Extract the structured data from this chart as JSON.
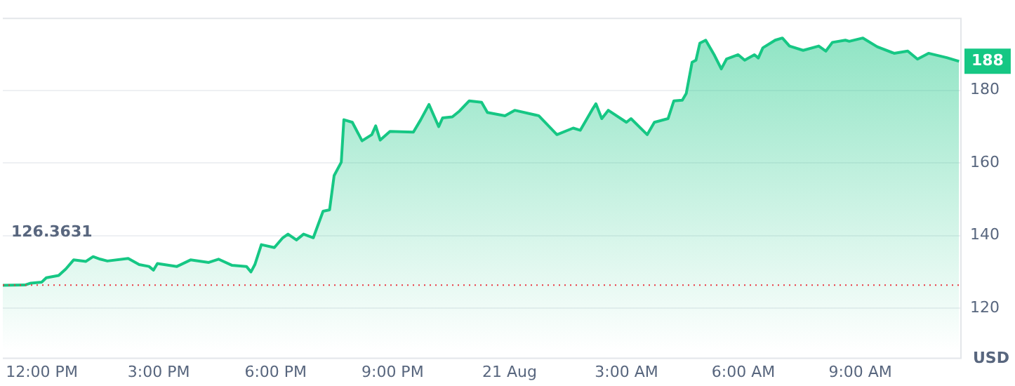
{
  "chart_data": {
    "type": "area",
    "ylabel": "USD",
    "x": [
      "--08-20T11:00",
      "--08-20T11:34",
      "--08-20T11:43",
      "--08-20T12:00",
      "--08-20T12:07",
      "--08-20T12:26",
      "--08-20T12:37",
      "--08-20T12:49",
      "--08-20T13:08",
      "--08-20T13:19",
      "--08-20T13:30",
      "--08-20T13:41",
      "--08-20T14:13",
      "--08-20T14:30",
      "--08-20T14:45",
      "--08-20T14:52",
      "--08-20T14:58",
      "--08-20T15:28",
      "--08-20T15:49",
      "--08-20T16:17",
      "--08-20T16:32",
      "--08-20T16:53",
      "--08-20T17:15",
      "--08-20T17:22",
      "--08-20T17:28",
      "--08-20T17:38",
      "--08-20T17:58",
      "--08-20T18:11",
      "--08-20T18:19",
      "--08-20T18:32",
      "--08-20T18:43",
      "--08-20T18:58",
      "--08-20T19:13",
      "--08-20T19:23",
      "--08-20T19:30",
      "--08-20T19:41",
      "--08-20T19:45",
      "--08-20T19:58",
      "--08-20T20:13",
      "--08-20T20:28",
      "--08-20T20:34",
      "--08-20T20:41",
      "--08-20T20:56",
      "--08-20T21:32",
      "--08-20T21:43",
      "--08-20T21:56",
      "--08-20T22:11",
      "--08-20T22:17",
      "--08-20T22:32",
      "--08-20T22:43",
      "--08-20T22:58",
      "--08-20T23:17",
      "--08-20T23:26",
      "--08-20T23:53",
      "--08-21T00:08",
      "--08-21T00:45",
      "--08-21T00:58",
      "--08-21T01:13",
      "--08-21T01:38",
      "--08-21T01:49",
      "--08-21T02:07",
      "--08-21T02:13",
      "--08-21T02:22",
      "--08-21T02:32",
      "--08-21T03:00",
      "--08-21T03:07",
      "--08-21T03:32",
      "--08-21T03:43",
      "--08-21T04:04",
      "--08-21T04:13",
      "--08-21T04:26",
      "--08-21T04:32",
      "--08-21T04:41",
      "--08-21T04:47",
      "--08-21T04:53",
      "--08-21T05:02",
      "--08-21T05:15",
      "--08-21T05:26",
      "--08-21T05:34",
      "--08-21T05:52",
      "--08-21T06:02",
      "--08-21T06:17",
      "--08-21T06:23",
      "--08-21T06:30",
      "--08-21T06:49",
      "--08-21T07:00",
      "--08-21T07:11",
      "--08-21T07:32",
      "--08-21T07:56",
      "--08-21T08:07",
      "--08-21T08:17",
      "--08-21T08:37",
      "--08-21T08:43",
      "--08-21T09:04",
      "--08-21T09:26",
      "--08-21T09:52",
      "--08-21T10:13",
      "--08-21T10:28",
      "--08-21T10:45",
      "--08-21T11:13",
      "--08-21T11:32"
    ],
    "series": [
      {
        "color": "#16c784",
        "values": [
          126.3,
          126.4,
          126.9,
          127.2,
          128.4,
          129,
          130.8,
          133.3,
          132.9,
          134.2,
          133.5,
          133,
          133.7,
          132,
          131.5,
          130.5,
          132.3,
          131.5,
          133.3,
          132.6,
          133.5,
          131.8,
          131.5,
          130,
          132,
          137.5,
          136.7,
          139.4,
          140.4,
          138.8,
          140.4,
          139.4,
          146.7,
          147.1,
          156.5,
          160.2,
          171.9,
          171.2,
          166.1,
          167.8,
          170.2,
          166.3,
          168.7,
          168.5,
          171.8,
          176.1,
          170,
          172.4,
          172.7,
          174.3,
          177.1,
          176.7,
          173.9,
          173,
          174.5,
          173,
          170.6,
          167.8,
          169.6,
          169,
          174.6,
          176.3,
          172.2,
          174.5,
          171.2,
          172.2,
          167.8,
          171.2,
          172.2,
          177.1,
          177.3,
          179.1,
          187.7,
          188.3,
          193,
          193.8,
          189.8,
          185.9,
          188.6,
          189.8,
          188.3,
          189.8,
          188.9,
          191.7,
          193.8,
          194.4,
          192.2,
          191,
          192.2,
          190.8,
          193.2,
          193.8,
          193.5,
          194.4,
          192,
          190.2,
          190.8,
          188.6,
          190.2,
          189,
          188
        ]
      }
    ],
    "xlim": [
      "--08-20T11:00",
      "--08-21T11:36"
    ],
    "xticks": [
      {
        "value": "--08-20T12:00",
        "label": "12:00 PM"
      },
      {
        "value": "--08-20T15:00",
        "label": "3:00 PM"
      },
      {
        "value": "--08-20T18:00",
        "label": "6:00 PM"
      },
      {
        "value": "--08-20T21:00",
        "label": "9:00 PM"
      },
      {
        "value": "--08-21T00:00",
        "label": "21 Aug"
      },
      {
        "value": "--08-21T03:00",
        "label": "3:00 AM"
      },
      {
        "value": "--08-21T06:00",
        "label": "6:00 AM"
      },
      {
        "value": "--08-21T09:00",
        "label": "9:00 AM"
      }
    ],
    "ylim": [
      106,
      200
    ],
    "yticks": [
      120,
      140,
      160,
      180
    ],
    "grid": "y",
    "marker": "none",
    "line_style": "solid",
    "legend": false,
    "ref_lines": [
      {
        "axis": "y",
        "value": 126.3631,
        "label": "126.3631",
        "color": "#ea3943",
        "line_style": "dotted"
      }
    ],
    "annotations": [
      {
        "text": "188",
        "x": "--08-21T11:32",
        "y": 188
      }
    ]
  }
}
